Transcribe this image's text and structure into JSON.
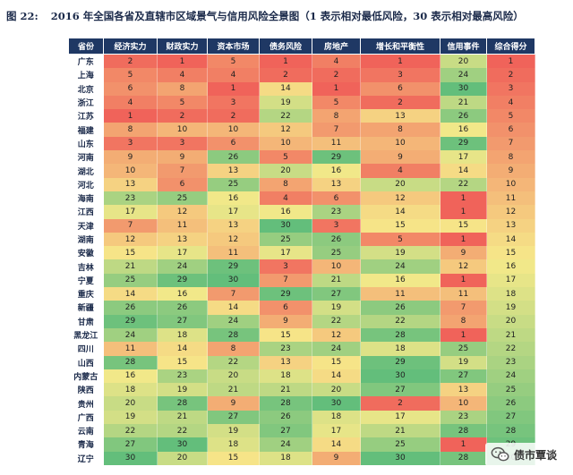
{
  "title": {
    "figure_no": "图 22:",
    "text": "2016 年全国各省及直辖市区域景气与信用风险全景图（1 表示相对最低风险，30 表示相对最高风险）"
  },
  "watermark": {
    "icon": "wechat-icon",
    "text": "债市覃谈"
  },
  "colors": {
    "header_bg": "#1f3864",
    "low_risk": "#f0635a",
    "mid": "#f6e98a",
    "high_risk": "#63be7b"
  },
  "chart_data": {
    "type": "table",
    "columns": [
      "省份",
      "经济实力",
      "财政实力",
      "资本市场",
      "债务风险",
      "房地产",
      "增长和平衡性",
      "信用事件",
      "综合得分"
    ],
    "rows": [
      {
        "province": "广东",
        "values": [
          2,
          1,
          5,
          1,
          4,
          1,
          20,
          1
        ]
      },
      {
        "province": "上海",
        "values": [
          5,
          4,
          4,
          2,
          2,
          3,
          24,
          2
        ]
      },
      {
        "province": "北京",
        "values": [
          6,
          8,
          1,
          14,
          1,
          6,
          30,
          3
        ]
      },
      {
        "province": "浙江",
        "values": [
          4,
          5,
          3,
          19,
          5,
          2,
          21,
          4
        ]
      },
      {
        "province": "江苏",
        "values": [
          1,
          2,
          2,
          22,
          8,
          13,
          26,
          5
        ]
      },
      {
        "province": "福建",
        "values": [
          8,
          10,
          10,
          12,
          7,
          8,
          16,
          6
        ]
      },
      {
        "province": "山东",
        "values": [
          3,
          3,
          6,
          10,
          11,
          10,
          29,
          7
        ]
      },
      {
        "province": "河南",
        "values": [
          9,
          9,
          26,
          5,
          29,
          9,
          17,
          8
        ]
      },
      {
        "province": "湖北",
        "values": [
          10,
          7,
          13,
          20,
          16,
          4,
          14,
          9
        ]
      },
      {
        "province": "河北",
        "values": [
          13,
          6,
          25,
          8,
          13,
          20,
          22,
          10
        ]
      },
      {
        "province": "海南",
        "values": [
          23,
          25,
          16,
          4,
          6,
          12,
          1,
          11
        ]
      },
      {
        "province": "江西",
        "values": [
          17,
          12,
          17,
          16,
          23,
          14,
          1,
          12
        ]
      },
      {
        "province": "天津",
        "values": [
          7,
          11,
          13,
          30,
          3,
          15,
          15,
          13
        ]
      },
      {
        "province": "湖南",
        "values": [
          12,
          13,
          12,
          25,
          26,
          5,
          1,
          14
        ]
      },
      {
        "province": "安徽",
        "values": [
          15,
          17,
          11,
          17,
          25,
          19,
          9,
          15
        ]
      },
      {
        "province": "吉林",
        "values": [
          21,
          24,
          29,
          3,
          10,
          24,
          12,
          16
        ]
      },
      {
        "province": "宁夏",
        "values": [
          25,
          29,
          30,
          7,
          21,
          16,
          1,
          17
        ]
      },
      {
        "province": "重庆",
        "values": [
          14,
          16,
          7,
          29,
          27,
          11,
          11,
          18
        ]
      },
      {
        "province": "新疆",
        "values": [
          26,
          26,
          14,
          6,
          19,
          26,
          7,
          19
        ]
      },
      {
        "province": "甘肃",
        "values": [
          29,
          27,
          24,
          9,
          22,
          22,
          8,
          20
        ]
      },
      {
        "province": "黑龙江",
        "values": [
          24,
          18,
          28,
          15,
          12,
          28,
          1,
          21
        ]
      },
      {
        "province": "四川",
        "values": [
          11,
          14,
          8,
          23,
          24,
          18,
          25,
          22
        ]
      },
      {
        "province": "山西",
        "values": [
          28,
          15,
          22,
          13,
          15,
          29,
          19,
          23
        ]
      },
      {
        "province": "内蒙古",
        "values": [
          16,
          23,
          20,
          18,
          14,
          30,
          27,
          24
        ]
      },
      {
        "province": "陕西",
        "values": [
          18,
          19,
          21,
          21,
          20,
          27,
          13,
          25
        ]
      },
      {
        "province": "贵州",
        "values": [
          20,
          28,
          9,
          28,
          30,
          2,
          10,
          26
        ]
      },
      {
        "province": "广西",
        "values": [
          19,
          21,
          27,
          26,
          18,
          17,
          23,
          27
        ]
      },
      {
        "province": "云南",
        "values": [
          22,
          22,
          19,
          27,
          17,
          21,
          28,
          28
        ]
      },
      {
        "province": "青海",
        "values": [
          27,
          30,
          18,
          24,
          14,
          25,
          1,
          29
        ]
      },
      {
        "province": "辽宁",
        "values": [
          30,
          20,
          15,
          18,
          9,
          30,
          28,
          30
        ]
      }
    ]
  }
}
